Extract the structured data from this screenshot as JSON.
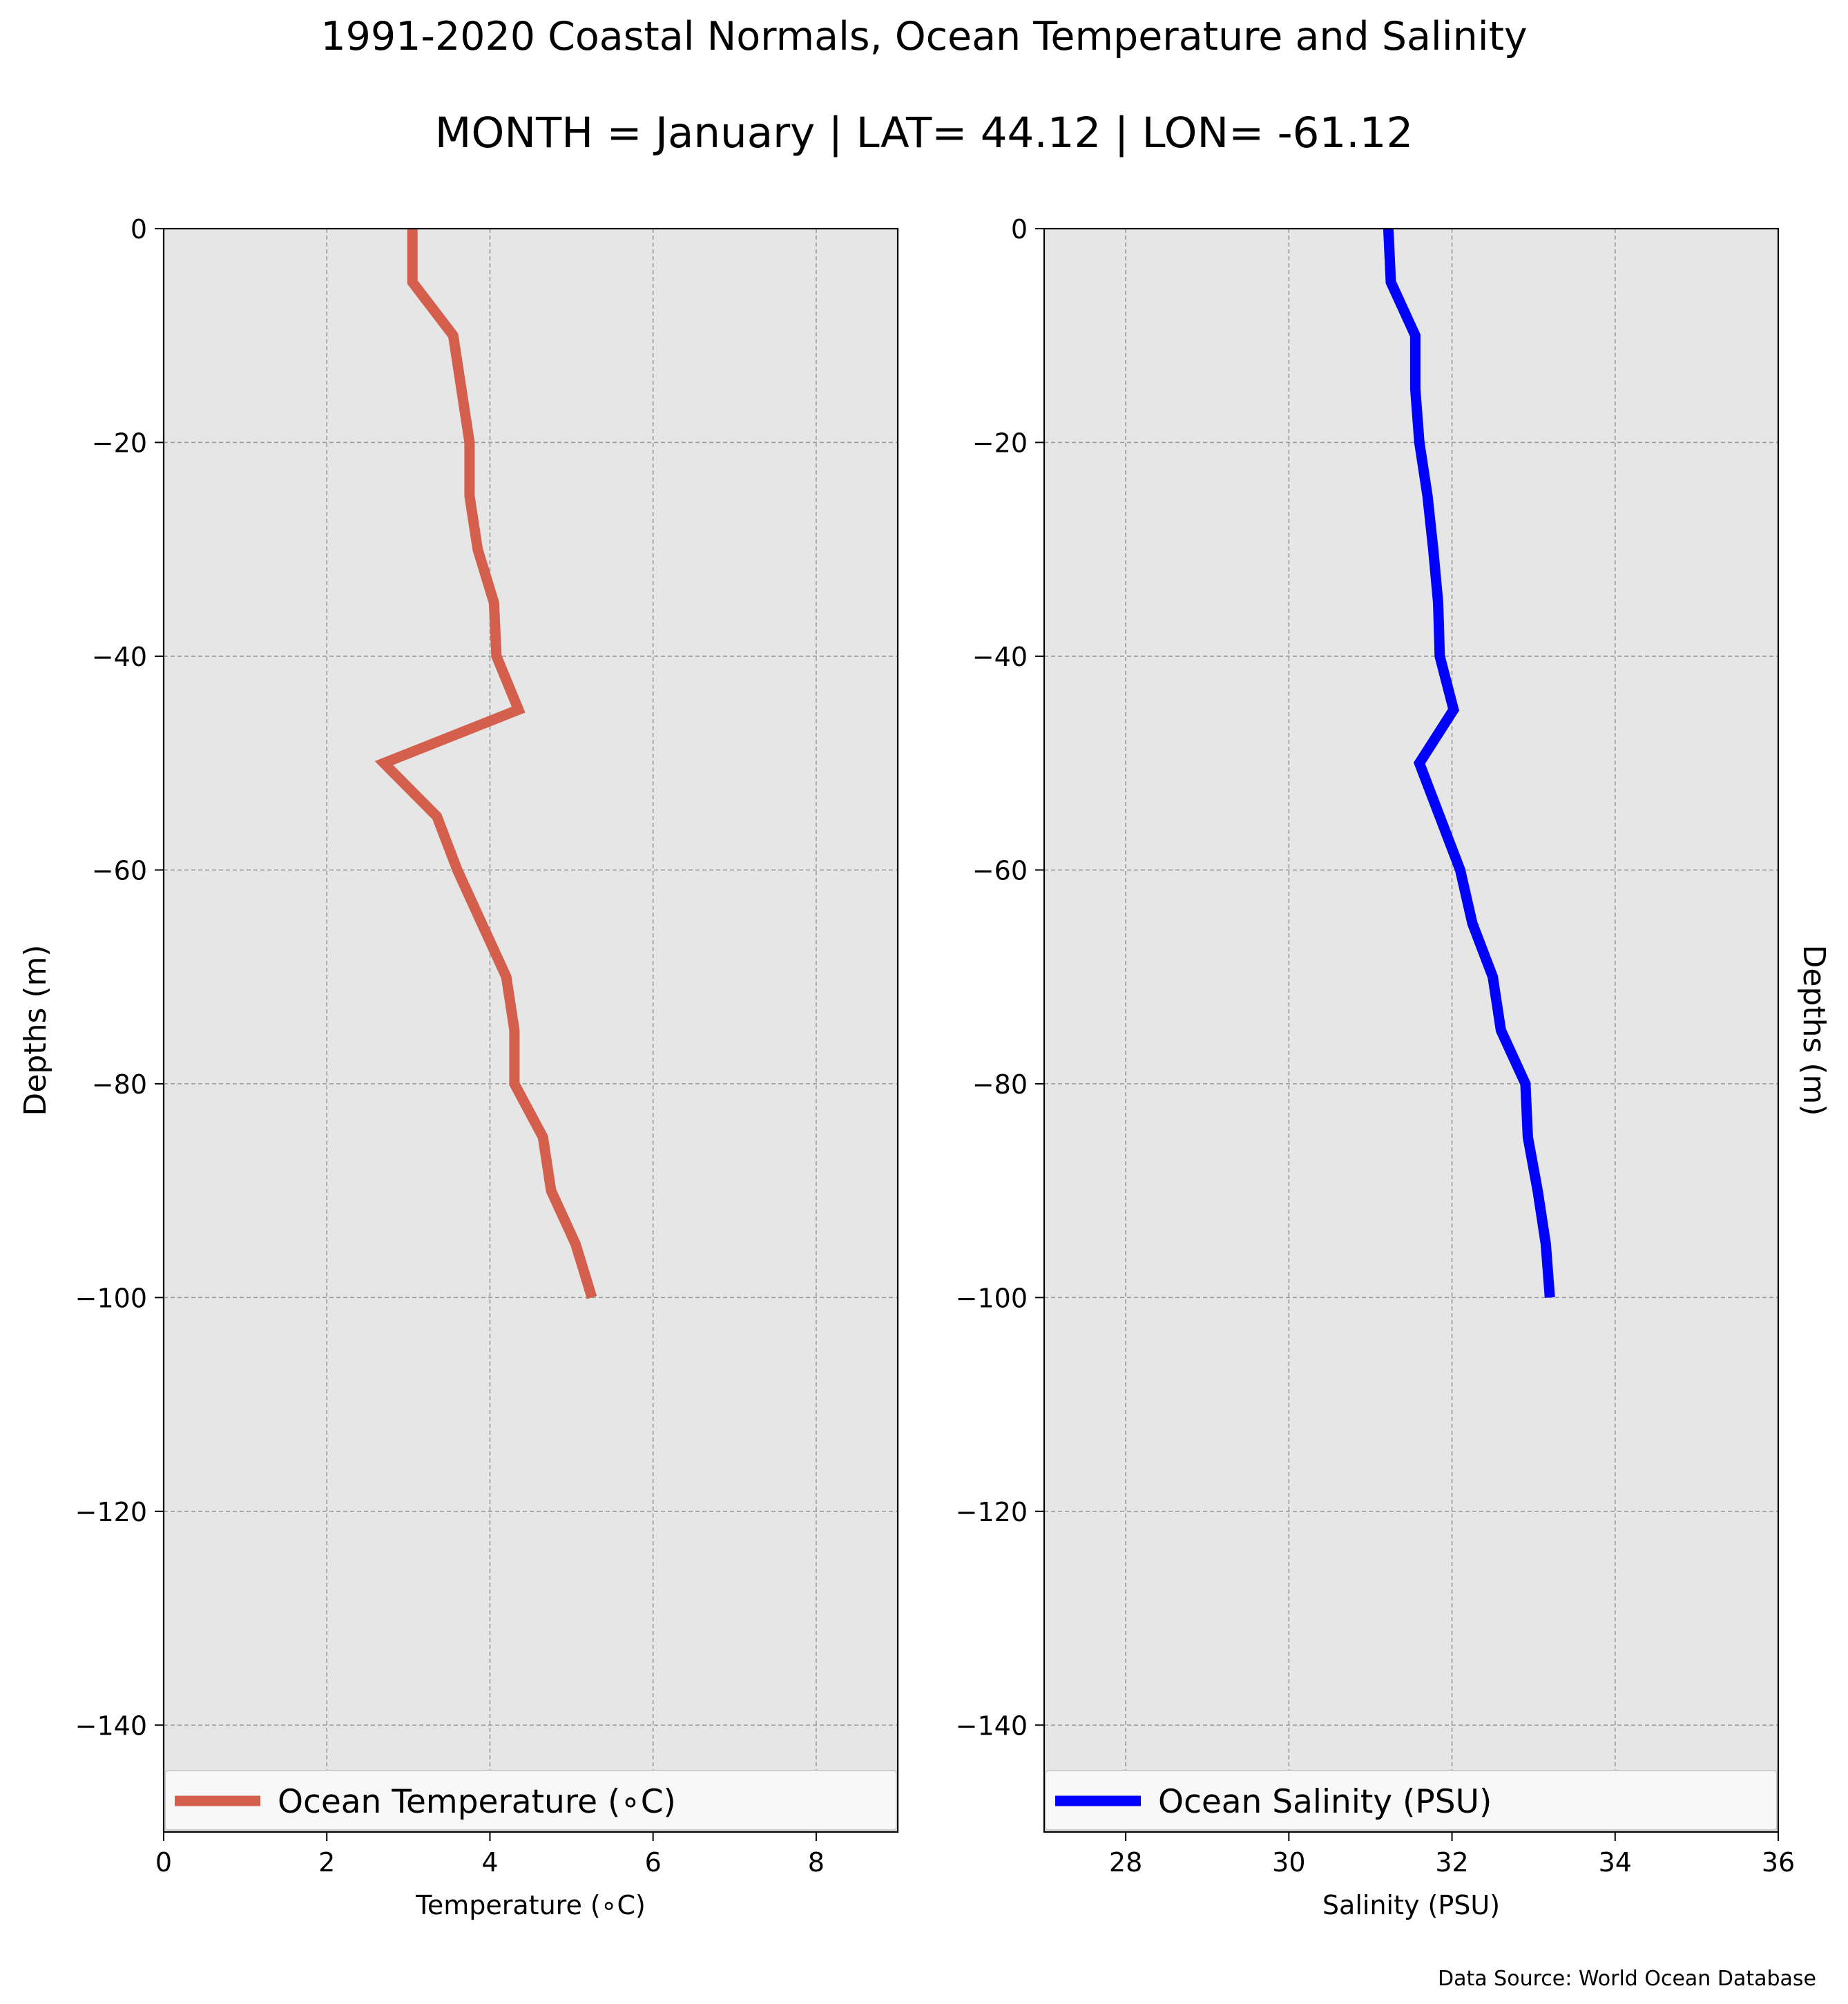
{
  "header": {
    "title": "1991-2020 Coastal Normals, Ocean Temperature and Salinity",
    "subtitle": "MONTH = January | LAT= 44.12 | LON= -61.12"
  },
  "footer": {
    "source": "Data Source: World Ocean Database"
  },
  "style": {
    "plot_background": "#e6e6e6",
    "grid_color": "#9a9a9a",
    "legend_background": "#f8f8f8"
  },
  "chart_data": [
    {
      "type": "line",
      "xlabel": "Temperature (∘C)",
      "ylabel": "Depths (m)",
      "ylabel_side": "left",
      "xlim": [
        0,
        9
      ],
      "ylim": [
        -150,
        0
      ],
      "xticks": [
        0,
        2,
        4,
        6,
        8
      ],
      "yticks": [
        0,
        -20,
        -40,
        -60,
        -80,
        -100,
        -120,
        -140
      ],
      "grid": true,
      "legend_position": "bottom",
      "series": [
        {
          "name": "Ocean Temperature (∘C)",
          "color": "#d35f4c",
          "x": [
            3.05,
            3.05,
            3.55,
            3.65,
            3.75,
            3.75,
            3.85,
            4.05,
            4.08,
            4.35,
            2.7,
            3.35,
            3.6,
            3.9,
            4.2,
            4.3,
            4.3,
            4.65,
            4.75,
            5.05,
            5.25
          ],
          "y": [
            0,
            -5,
            -10,
            -15,
            -20,
            -25,
            -30,
            -35,
            -40,
            -45,
            -50,
            -55,
            -60,
            -65,
            -70,
            -75,
            -80,
            -85,
            -90,
            -95,
            -100
          ]
        }
      ]
    },
    {
      "type": "line",
      "xlabel": "Salinity (PSU)",
      "ylabel": "Depths (m)",
      "ylabel_side": "right",
      "xlim": [
        27,
        36
      ],
      "ylim": [
        -150,
        0
      ],
      "xticks": [
        28,
        30,
        32,
        34,
        36
      ],
      "yticks": [
        0,
        -20,
        -40,
        -60,
        -80,
        -100,
        -120,
        -140
      ],
      "grid": true,
      "legend_position": "bottom",
      "series": [
        {
          "name": "Ocean Salinity (PSU)",
          "color": "#0000ff",
          "x": [
            31.22,
            31.25,
            31.55,
            31.55,
            31.6,
            31.7,
            31.77,
            31.83,
            31.85,
            32.02,
            31.6,
            31.85,
            32.1,
            32.25,
            32.5,
            32.6,
            32.9,
            32.93,
            33.05,
            33.15,
            33.2
          ],
          "y": [
            0,
            -5,
            -10,
            -15,
            -20,
            -25,
            -30,
            -35,
            -40,
            -45,
            -50,
            -55,
            -60,
            -65,
            -70,
            -75,
            -80,
            -85,
            -90,
            -95,
            -100
          ]
        }
      ]
    }
  ]
}
